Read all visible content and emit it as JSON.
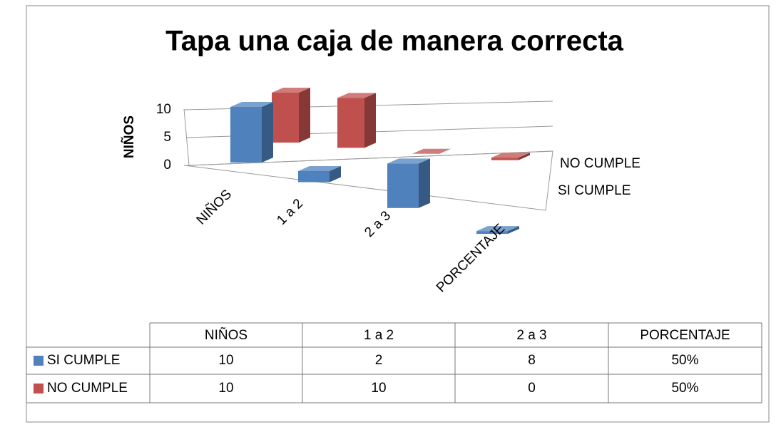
{
  "chart_data": {
    "type": "bar3d",
    "title": "Tapa una caja de manera correcta",
    "ylabel": "NIÑOS",
    "categories": [
      "NIÑOS",
      "1 a 2",
      "2 a 3",
      "PORCENTAJE"
    ],
    "series": [
      {
        "name": "SI CUMPLE",
        "color": "#4f81bd",
        "values": [
          10,
          2,
          8,
          0.5
        ],
        "value_labels": [
          "10",
          "2",
          "8",
          "50%"
        ]
      },
      {
        "name": "NO CUMPLE",
        "color": "#c0504d",
        "values": [
          10,
          10,
          0,
          0.5
        ],
        "value_labels": [
          "10",
          "10",
          "0",
          "50%"
        ]
      }
    ],
    "ylim": [
      0,
      10
    ],
    "yticks": [
      0,
      5,
      10
    ],
    "grid": true,
    "data_table": true
  }
}
